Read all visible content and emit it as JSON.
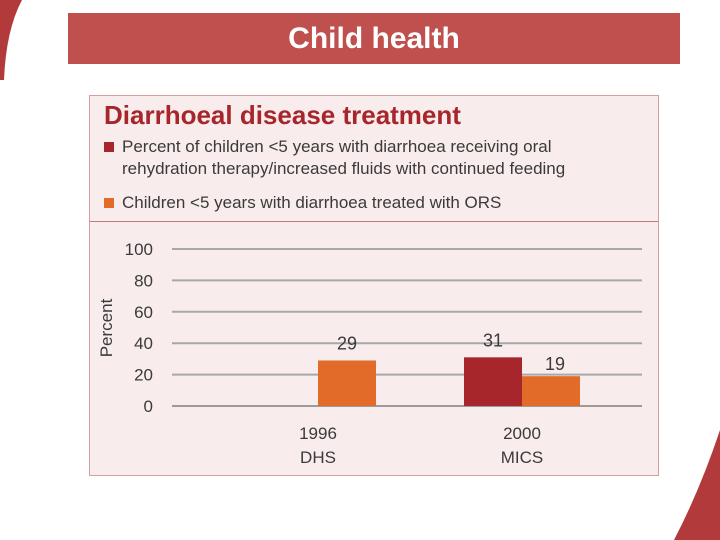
{
  "slide": {
    "title": "Child health",
    "colors": {
      "banner": "#c0504d",
      "panel_bg": "#f9ecec",
      "accent_dark": "#a6262b"
    }
  },
  "chart_data": {
    "type": "bar",
    "title": "Diarrhoeal disease treatment",
    "ylabel": "Percent",
    "xlabel": "",
    "ylim": [
      0,
      100
    ],
    "yticks": [
      0,
      20,
      40,
      60,
      80,
      100
    ],
    "grid": true,
    "categories": [
      {
        "line1": "1996",
        "line2": "DHS"
      },
      {
        "line1": "2000",
        "line2": "MICS"
      }
    ],
    "series": [
      {
        "name": "Percent of children <5 years with diarrhoea receiving oral rehydration therapy/increased fluids with continued feeding",
        "legend_line1": "Percent of children <5 years with diarrhoea receiving oral",
        "legend_line2": "rehydration therapy/increased fluids with continued feeding",
        "color": "#a6262b",
        "values": [
          null,
          31
        ]
      },
      {
        "name": "Children <5 years with diarrhoea treated with ORS",
        "legend_line1": "Children <5 years with diarrhoea treated with ORS",
        "color": "#e26b2a",
        "values": [
          29,
          19
        ]
      }
    ]
  }
}
